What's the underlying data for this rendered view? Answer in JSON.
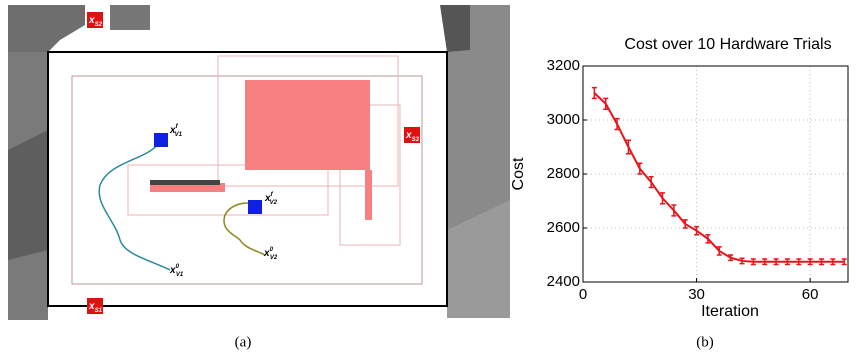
{
  "map": {
    "labels": [
      {
        "main": "x",
        "sub": "S2"
      },
      {
        "main": "x",
        "sub": "S3"
      },
      {
        "main": "x",
        "sub": "S1"
      },
      {
        "main": "x",
        "sup": "f",
        "sub": "V1"
      },
      {
        "main": "x",
        "sup": "0",
        "sub": "V1"
      },
      {
        "main": "x",
        "sup": "f",
        "sub": "V2"
      },
      {
        "main": "x",
        "sup": "0",
        "sub": "V2"
      }
    ]
  },
  "captions": [
    "(a)",
    "(b)"
  ],
  "chart_data": {
    "type": "line",
    "title": "Cost over 10 Hardware Trials",
    "xlabel": "Iteration",
    "ylabel": "Cost",
    "x": [
      3,
      6,
      9,
      12,
      15,
      18,
      21,
      24,
      27,
      30,
      33,
      36,
      39,
      42,
      45,
      48,
      51,
      54,
      57,
      60,
      63,
      66,
      69
    ],
    "values": [
      3100,
      3060,
      2985,
      2900,
      2820,
      2770,
      2710,
      2665,
      2615,
      2590,
      2560,
      2515,
      2490,
      2478,
      2475,
      2475,
      2475,
      2475,
      2475,
      2475,
      2475,
      2475,
      2475
    ],
    "errors": [
      20,
      20,
      20,
      25,
      20,
      20,
      20,
      20,
      15,
      15,
      15,
      15,
      10,
      10,
      10,
      10,
      10,
      10,
      10,
      10,
      10,
      10,
      10
    ],
    "color": "#e8141a",
    "xlim": [
      0,
      70
    ],
    "ylim": [
      2400,
      3200
    ],
    "xticks": [
      0,
      30,
      60
    ],
    "yticks": [
      2400,
      2600,
      2800,
      3000,
      3200
    ],
    "grid": true
  }
}
